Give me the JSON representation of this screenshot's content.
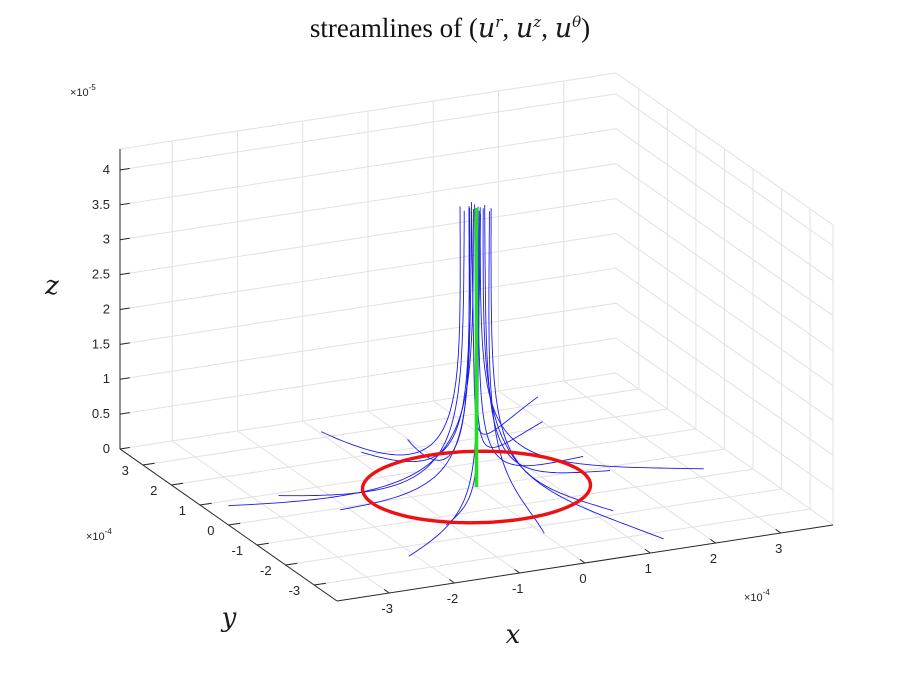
{
  "chart_data": {
    "type": "line3d",
    "title": "streamlines of (u^r, u^z, u^θ)",
    "title_parts": {
      "prefix": "streamlines of (",
      "var1": "u",
      "sup1": "r",
      "var2": "u",
      "sup2": "z",
      "var3": "u",
      "sup3": "θ",
      "suffix": ")"
    },
    "xlabel": "x",
    "ylabel": "y",
    "zlabel": "z",
    "x_exponent": "×10",
    "x_exponent_power": "-4",
    "y_exponent": "×10",
    "y_exponent_power": "-4",
    "z_exponent": "×10",
    "z_exponent_power": "-5",
    "xlim": [
      -3.8,
      3.8
    ],
    "ylim": [
      -3.8,
      3.8
    ],
    "zlim": [
      0,
      4.3
    ],
    "x_ticks": [
      -3,
      -2,
      -1,
      0,
      1,
      2,
      3
    ],
    "x_tick_labels": [
      "-3",
      "-2",
      "-1",
      "0",
      "1",
      "2",
      "3"
    ],
    "y_ticks": [
      -3,
      -2,
      -1,
      0,
      1,
      2,
      3
    ],
    "y_tick_labels": [
      "-3",
      "-2",
      "-1",
      "0",
      "1",
      "2",
      "3"
    ],
    "z_ticks": [
      0,
      0.5,
      1,
      1.5,
      2,
      2.5,
      3,
      3.5,
      4
    ],
    "z_tick_labels": [
      "0",
      "0.5",
      "1",
      "1.5",
      "2",
      "2.5",
      "3",
      "3.5",
      "4"
    ],
    "grid": true,
    "series": [
      {
        "kind": "circle",
        "color": "#ee1111",
        "radius": 1.6,
        "z": 0
      },
      {
        "kind": "axis",
        "color": "#22dd22",
        "z_from": 0,
        "z_to": 4.0
      },
      {
        "kind": "streamlines",
        "color": "#1a1aee",
        "count": 16,
        "start_radius": 3.6,
        "end_radius_min": 0.06,
        "end_radius_max": 0.28,
        "z_end": 4.0
      }
    ]
  }
}
